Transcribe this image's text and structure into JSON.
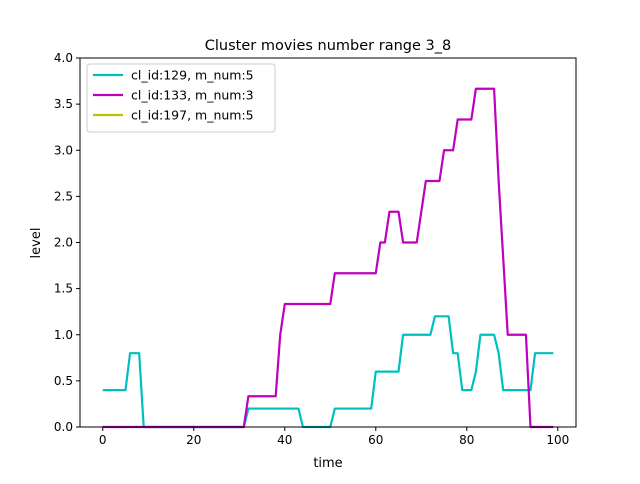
{
  "chart_data": {
    "type": "line",
    "title": "Cluster movies number range 3_8",
    "xlabel": "time",
    "ylabel": "level",
    "xlim": [
      -5,
      104
    ],
    "ylim": [
      0,
      4.0
    ],
    "xticks": [
      "0",
      "20",
      "40",
      "60",
      "80",
      "100"
    ],
    "yticks": [
      "0.0",
      "0.5",
      "1.0",
      "1.5",
      "2.0",
      "2.5",
      "3.0",
      "3.5",
      "4.0"
    ],
    "grid": false,
    "legend_position": "upper-left",
    "series": [
      {
        "name": "cl_id:129, m_num:5",
        "color": "#00bfbf",
        "points": [
          [
            0,
            0.4
          ],
          [
            5,
            0.4
          ],
          [
            6,
            0.8
          ],
          [
            8,
            0.8
          ],
          [
            9,
            0
          ],
          [
            31,
            0
          ],
          [
            32,
            0.2
          ],
          [
            43,
            0.2
          ],
          [
            44,
            0
          ],
          [
            50,
            0
          ],
          [
            51,
            0.2
          ],
          [
            59,
            0.2
          ],
          [
            60,
            0.6
          ],
          [
            65,
            0.6
          ],
          [
            66,
            1.0
          ],
          [
            72,
            1.0
          ],
          [
            73,
            1.2
          ],
          [
            76,
            1.2
          ],
          [
            77,
            0.8
          ],
          [
            78,
            0.8
          ],
          [
            79,
            0.4
          ],
          [
            81,
            0.4
          ],
          [
            82,
            0.6
          ],
          [
            83,
            1.0
          ],
          [
            86,
            1.0
          ],
          [
            87,
            0.8
          ],
          [
            88,
            0.4
          ],
          [
            93,
            0.4
          ],
          [
            94,
            0.4
          ],
          [
            95,
            0.8
          ],
          [
            99,
            0.8
          ]
        ]
      },
      {
        "name": "cl_id:133, m_num:3",
        "color": "#bf00bf",
        "points": [
          [
            0,
            0
          ],
          [
            31,
            0
          ],
          [
            32,
            0.333
          ],
          [
            38,
            0.333
          ],
          [
            39,
            1.0
          ],
          [
            40,
            1.333
          ],
          [
            50,
            1.333
          ],
          [
            51,
            1.667
          ],
          [
            60,
            1.667
          ],
          [
            61,
            2.0
          ],
          [
            62,
            2.0
          ],
          [
            63,
            2.333
          ],
          [
            65,
            2.333
          ],
          [
            66,
            2.0
          ],
          [
            69,
            2.0
          ],
          [
            70,
            2.333
          ],
          [
            71,
            2.667
          ],
          [
            74,
            2.667
          ],
          [
            75,
            3.0
          ],
          [
            77,
            3.0
          ],
          [
            78,
            3.333
          ],
          [
            81,
            3.333
          ],
          [
            82,
            3.667
          ],
          [
            86,
            3.667
          ],
          [
            87,
            2.667
          ],
          [
            89,
            1.0
          ],
          [
            93,
            1.0
          ],
          [
            94,
            0
          ],
          [
            99,
            0
          ]
        ]
      },
      {
        "name": "cl_id:197, m_num:5",
        "color": "#bfbf00",
        "points": []
      }
    ]
  }
}
